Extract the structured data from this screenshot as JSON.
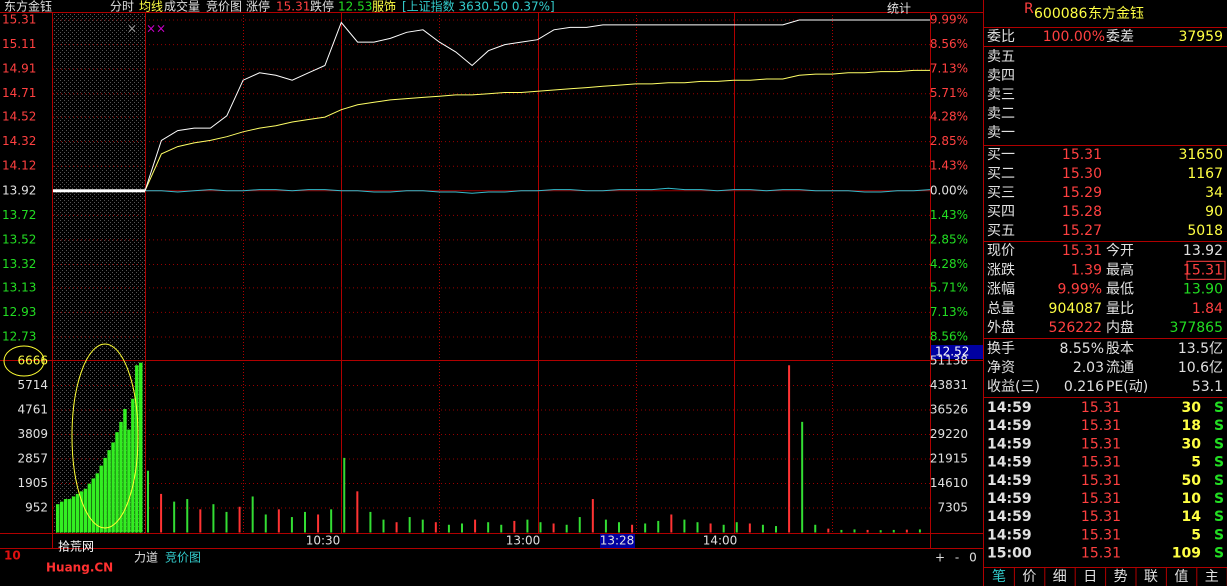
{
  "header": {
    "items": [
      "东方金钰",
      "分时",
      "均线",
      "成交量",
      "竞价图",
      "涨停",
      "15.31",
      "跌停",
      "12.53",
      "服饰",
      "[上证指数 3630.50 0.37%]"
    ],
    "stat": "统计"
  },
  "chart": {
    "price_ticks": [
      "15.31",
      "15.11",
      "14.91",
      "14.71",
      "14.52",
      "14.32",
      "14.12",
      "13.92",
      "13.72",
      "13.52",
      "13.32",
      "13.13",
      "12.93",
      "12.73"
    ],
    "pct_ticks": [
      "9.99%",
      "8.56%",
      "7.13%",
      "5.71%",
      "4.28%",
      "2.85%",
      "1.43%",
      "0.00%",
      "1.43%",
      "2.85%",
      "4.28%",
      "5.71%",
      "7.13%",
      "8.56%"
    ],
    "last_label": "12.52",
    "vol_ticks": [
      6666,
      5714,
      4761,
      3809,
      2857,
      1905,
      952
    ],
    "vol_ticks_right": [
      51138,
      43831,
      36526,
      29220,
      21915,
      14610,
      7305
    ],
    "price": {
      "color": "#ffffff",
      "values": [
        13.92,
        14.33,
        14.41,
        14.43,
        14.43,
        14.53,
        14.82,
        14.88,
        14.86,
        14.82,
        14.88,
        14.94,
        15.29,
        15.13,
        15.13,
        15.16,
        15.21,
        15.23,
        15.13,
        15.05,
        14.94,
        15.06,
        15.11,
        15.13,
        15.15,
        15.23,
        15.25,
        15.25,
        15.27,
        15.27,
        15.27,
        15.27,
        15.27,
        15.27,
        15.27,
        15.27,
        15.27,
        15.27,
        15.27,
        15.27,
        15.31,
        15.31,
        15.31,
        15.31,
        15.31,
        15.31,
        15.31,
        15.31,
        15.31
      ]
    },
    "average": {
      "color": "#ffff66",
      "values": [
        13.92,
        14.22,
        14.28,
        14.31,
        14.33,
        14.36,
        14.4,
        14.43,
        14.45,
        14.48,
        14.5,
        14.52,
        14.58,
        14.62,
        14.64,
        14.66,
        14.67,
        14.68,
        14.69,
        14.7,
        14.7,
        14.71,
        14.72,
        14.72,
        14.73,
        14.74,
        14.75,
        14.76,
        14.77,
        14.78,
        14.79,
        14.79,
        14.8,
        14.8,
        14.81,
        14.81,
        14.82,
        14.82,
        14.83,
        14.83,
        14.86,
        14.87,
        14.87,
        14.88,
        14.88,
        14.89,
        14.89,
        14.9,
        14.9
      ]
    },
    "index_line": {
      "color": "#33bbcc",
      "values": [
        13.92,
        13.92,
        13.91,
        13.92,
        13.93,
        13.92,
        13.92,
        13.93,
        13.93,
        13.92,
        13.93,
        13.93,
        13.92,
        13.92,
        13.91,
        13.91,
        13.92,
        13.92,
        13.91,
        13.91,
        13.9,
        13.91,
        13.91,
        13.92,
        13.92,
        13.93,
        13.93,
        13.92,
        13.92,
        13.93,
        13.93,
        13.93,
        13.94,
        13.93,
        13.93,
        13.92,
        13.93,
        13.93,
        13.92,
        13.93,
        13.93,
        13.92,
        13.92,
        13.92,
        13.91,
        13.91,
        13.92,
        13.92,
        13.93
      ]
    },
    "volume": {
      "up_color": "#ff3333",
      "down_color": "#33dd33",
      "values": [
        2400,
        1500,
        1200,
        1300,
        900,
        1100,
        800,
        1000,
        1400,
        700,
        900,
        600,
        800,
        700,
        900,
        2900,
        1600,
        800,
        500,
        400,
        600,
        500,
        400,
        300,
        350,
        500,
        400,
        300,
        450,
        500,
        400,
        350,
        300,
        600,
        1300,
        500,
        400,
        300,
        350,
        450,
        700,
        500,
        400,
        350,
        300,
        400,
        350,
        300,
        250,
        6500,
        4300,
        300,
        150,
        100,
        120,
        100,
        90,
        100,
        110,
        120
      ]
    },
    "auction_volume": {
      "color": "#33ee22",
      "values": [
        1100,
        1200,
        1300,
        1300,
        1400,
        1500,
        1600,
        1700,
        1900,
        2100,
        2300,
        2600,
        2900,
        3200,
        3500,
        3900,
        4300,
        4800,
        4000,
        5200,
        6500,
        6600
      ]
    },
    "times": [
      "10:30",
      "13:00",
      "13:28",
      "14:00"
    ],
    "bottom_tabs": [
      "力道",
      "竞价图"
    ],
    "zoom": [
      "+",
      "-",
      "0"
    ]
  },
  "watermark": {
    "logo": "10",
    "site": "拾荒网",
    "domain": "Huang.CN"
  },
  "quote": {
    "flag": "R",
    "code": "600086",
    "name": "东方金钰",
    "ratio": [
      "委比",
      "100.00%",
      "委差",
      "37959"
    ],
    "asks": [
      "卖五",
      "卖四",
      "卖三",
      "卖二",
      "卖一"
    ],
    "bids": [
      [
        "买一",
        "15.31",
        "31650"
      ],
      [
        "买二",
        "15.30",
        "1167"
      ],
      [
        "买三",
        "15.29",
        "34"
      ],
      [
        "买四",
        "15.28",
        "90"
      ],
      [
        "买五",
        "15.27",
        "5018"
      ]
    ],
    "stats": [
      [
        "现价",
        "15.31",
        "今开",
        "13.92"
      ],
      [
        "涨跌",
        "1.39",
        "最高",
        "15.31"
      ],
      [
        "涨幅",
        "9.99%",
        "最低",
        "13.90"
      ],
      [
        "总量",
        "904087",
        "量比",
        "1.84"
      ],
      [
        "外盘",
        "526222",
        "内盘",
        "377865"
      ]
    ],
    "info": [
      [
        "换手",
        "8.55%",
        "股本",
        "13.5亿"
      ],
      [
        "净资",
        "2.03",
        "流通",
        "10.6亿"
      ],
      [
        "收益(三)",
        "0.216",
        "PE(动)",
        "53.1"
      ]
    ],
    "trades": [
      [
        "14:59",
        "15.31",
        "30",
        "S"
      ],
      [
        "14:59",
        "15.31",
        "18",
        "S"
      ],
      [
        "14:59",
        "15.31",
        "30",
        "S"
      ],
      [
        "14:59",
        "15.31",
        "5",
        "S"
      ],
      [
        "14:59",
        "15.31",
        "50",
        "S"
      ],
      [
        "14:59",
        "15.31",
        "10",
        "S"
      ],
      [
        "14:59",
        "15.31",
        "14",
        "S"
      ],
      [
        "14:59",
        "15.31",
        "5",
        "S"
      ],
      [
        "15:00",
        "15.31",
        "109",
        "S"
      ]
    ],
    "tabs": [
      "笔",
      "价",
      "细",
      "日",
      "势",
      "联",
      "值",
      "主"
    ]
  }
}
